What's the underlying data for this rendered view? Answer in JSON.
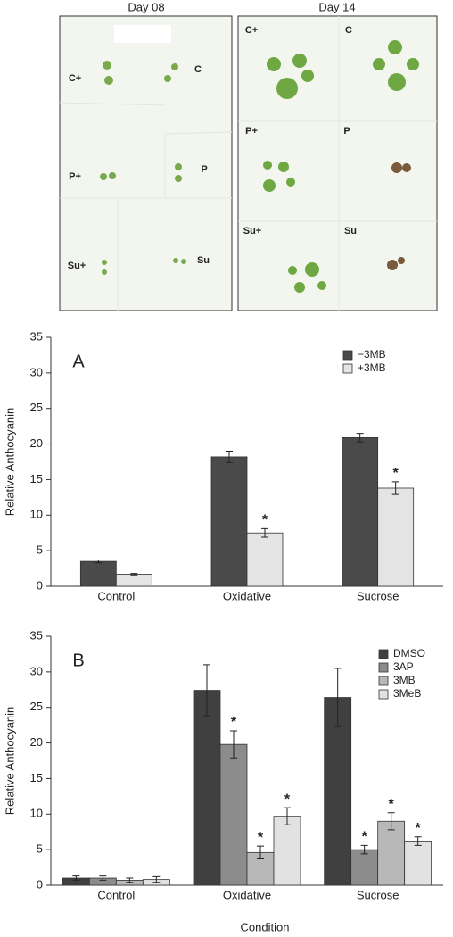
{
  "figure_panels": {
    "left": {
      "title": "Day 08",
      "labels": [
        "C+",
        "C",
        "P+",
        "P",
        "Su+",
        "Su"
      ]
    },
    "right": {
      "title": "Day 14",
      "labels": [
        "C+",
        "C",
        "P+",
        "P",
        "Su+",
        "Su"
      ]
    }
  },
  "chart_data": [
    {
      "type": "bar",
      "panel_label": "A",
      "y_label": "Relative Anthocyanin",
      "categories": [
        "Control",
        "Oxidative",
        "Sucrose"
      ],
      "series": [
        {
          "name": "−3MB",
          "color": "#4a4a4a",
          "values": [
            3.5,
            18.2,
            20.9
          ],
          "errors": [
            0.2,
            0.8,
            0.6
          ],
          "significance": [
            null,
            null,
            null
          ]
        },
        {
          "name": "+3MB",
          "color": "#e4e4e4",
          "values": [
            1.7,
            7.5,
            13.8
          ],
          "errors": [
            0.1,
            0.6,
            0.9
          ],
          "significance": [
            null,
            "*",
            "*"
          ]
        }
      ],
      "ylim": [
        0,
        35
      ],
      "yticks": [
        0,
        5,
        10,
        15,
        20,
        25,
        30,
        35
      ],
      "legend": "top-right"
    },
    {
      "type": "bar",
      "panel_label": "B",
      "y_label": "Relative Anthocyanin",
      "x_label": "Condition",
      "categories": [
        "Control",
        "Oxidative",
        "Sucrose"
      ],
      "series": [
        {
          "name": "DMSO",
          "color": "#404040",
          "values": [
            1.0,
            27.4,
            26.4
          ],
          "errors": [
            0.3,
            3.6,
            4.1
          ],
          "significance": [
            null,
            null,
            null
          ]
        },
        {
          "name": "3AP",
          "color": "#8c8c8c",
          "values": [
            1.0,
            19.8,
            5.0
          ],
          "errors": [
            0.3,
            1.9,
            0.6
          ],
          "significance": [
            null,
            "*",
            "*"
          ]
        },
        {
          "name": "3MB",
          "color": "#b8b8b8",
          "values": [
            0.7,
            4.6,
            9.0
          ],
          "errors": [
            0.3,
            0.9,
            1.2
          ],
          "significance": [
            null,
            "*",
            "*"
          ]
        },
        {
          "name": "3MeB",
          "color": "#e2e2e2",
          "values": [
            0.8,
            9.7,
            6.2
          ],
          "errors": [
            0.4,
            1.2,
            0.6
          ],
          "significance": [
            null,
            "*",
            "*"
          ]
        }
      ],
      "ylim": [
        0,
        35
      ],
      "yticks": [
        0,
        5,
        10,
        15,
        20,
        25,
        30,
        35
      ],
      "legend": "top-right"
    }
  ]
}
